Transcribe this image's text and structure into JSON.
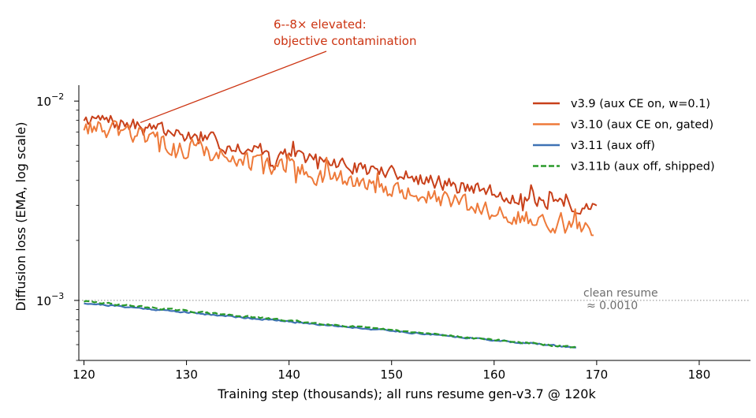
{
  "chart_data": {
    "type": "line",
    "xlabel": "Training step (thousands); all runs resume gen-v3.7 @ 120k",
    "ylabel": "Diffusion loss (EMA, log scale)",
    "xlim": [
      119.5,
      185
    ],
    "ylim": [
      0.0005,
      0.0118
    ],
    "yscale": "log",
    "xticks": [
      120,
      130,
      140,
      150,
      160,
      170,
      180
    ],
    "yticks": [
      {
        "value": 0.01,
        "base": "10",
        "exp": "−2"
      },
      {
        "value": 0.001,
        "base": "10",
        "exp": "−3"
      }
    ],
    "grid": false,
    "legend_position": "top-right",
    "reference_line": {
      "y": 0.001,
      "style": "dotted",
      "label_lines": [
        "clean resume",
        "≈ 0.0010"
      ]
    },
    "annotation": {
      "lines": [
        "6--8× elevated:",
        "objective contamination"
      ],
      "color": "#cc3311",
      "points_to": {
        "x": 125.5,
        "y": 0.0078
      }
    },
    "series": [
      {
        "name": "v3.9 (aux CE on, w=0.1)",
        "color": "#c8401a",
        "dash": "solid",
        "x_start": 120,
        "x_end": 170,
        "n": 250,
        "y_start": 0.0083,
        "y_end": 0.0028,
        "noise": 0.12,
        "seed": 7
      },
      {
        "name": "v3.10 (aux CE on, gated)",
        "color": "#ee7a3a",
        "dash": "solid",
        "x_start": 120,
        "x_end": 169.7,
        "n": 250,
        "y_start": 0.0075,
        "y_end": 0.0022,
        "noise": 0.15,
        "seed": 13
      },
      {
        "name": "v3.11 (aux off)",
        "color": "#3f72b5",
        "dash": "solid",
        "x_start": 120,
        "x_end": 168,
        "n": 240,
        "y_start": 0.00097,
        "y_end": 0.00058,
        "noise": 0.012,
        "seed": 21
      },
      {
        "name": "v3.11b (aux off, shipped)",
        "color": "#2a9a2a",
        "dash": "dashed",
        "x_start": 120,
        "x_end": 168,
        "n": 240,
        "y_start": 0.00099,
        "y_end": 0.00058,
        "noise": 0.014,
        "seed": 29
      }
    ]
  }
}
